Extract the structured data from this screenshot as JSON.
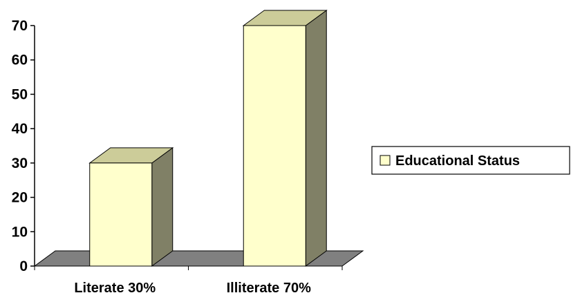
{
  "chart_data": {
    "type": "bar",
    "categories": [
      "Literate 30%",
      "Illiterate 70%"
    ],
    "series": [
      {
        "name": "Educational Status",
        "values": [
          30,
          70
        ]
      }
    ],
    "title": "",
    "xlabel": "",
    "ylabel": "",
    "ylim": [
      0,
      70
    ],
    "yticks": [
      "0",
      "10",
      "20",
      "30",
      "40",
      "50",
      "60",
      "70"
    ],
    "grid": false,
    "legend_position": "right",
    "three_d": true,
    "colors": {
      "bar_front": "#ffffcc",
      "bar_top": "#cccc99",
      "bar_side": "#808066",
      "floor": "#808080",
      "stroke": "#000000"
    }
  }
}
